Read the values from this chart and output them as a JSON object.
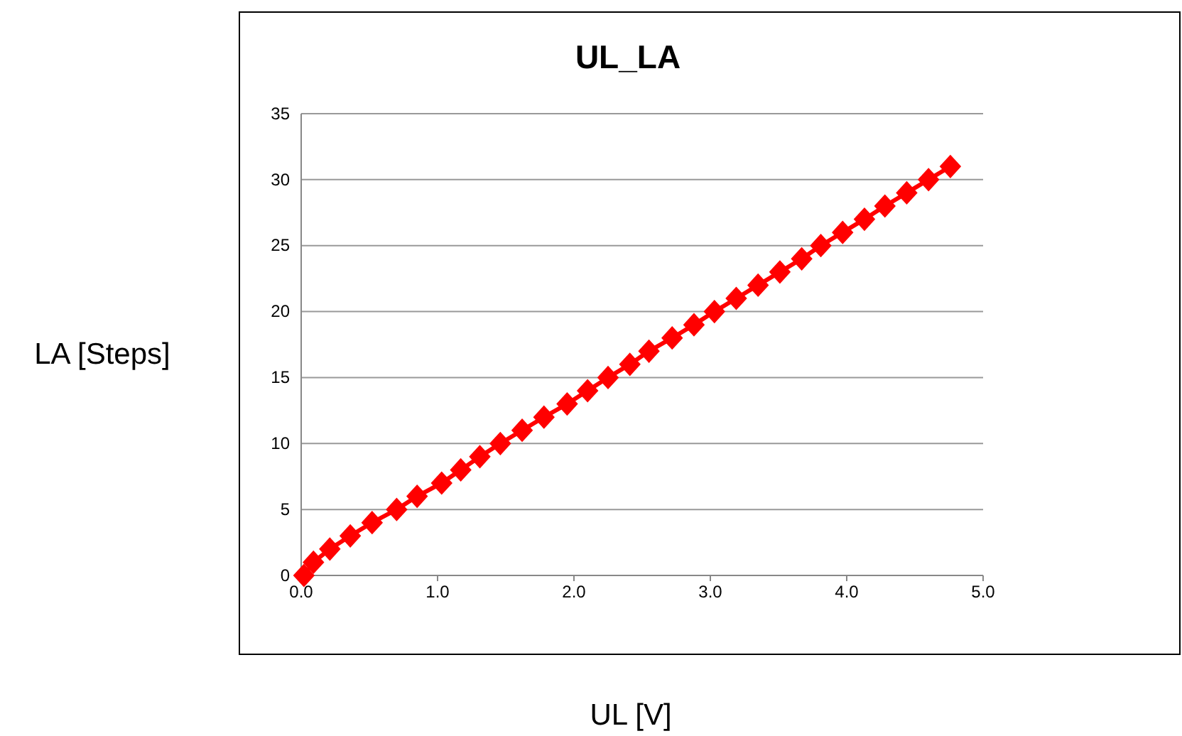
{
  "chart_data": {
    "type": "line",
    "title": "UL_LA",
    "xlabel": "UL [V]",
    "ylabel": "LA [Steps]",
    "x": [
      0.02,
      0.09,
      0.21,
      0.36,
      0.52,
      0.7,
      0.85,
      1.03,
      1.17,
      1.31,
      1.46,
      1.62,
      1.78,
      1.95,
      2.1,
      2.25,
      2.41,
      2.55,
      2.72,
      2.88,
      3.03,
      3.19,
      3.35,
      3.51,
      3.67,
      3.81,
      3.97,
      4.13,
      4.28,
      4.44,
      4.6,
      4.76
    ],
    "series": [
      {
        "color": "#ff0000",
        "values": [
          0,
          1,
          2,
          3,
          4,
          5,
          6,
          7,
          8,
          9,
          10,
          11,
          12,
          13,
          14,
          15,
          16,
          17,
          18,
          19,
          20,
          21,
          22,
          23,
          24,
          25,
          26,
          27,
          28,
          29,
          30,
          31
        ]
      }
    ],
    "xlim": [
      0,
      5
    ],
    "xticks": [
      {
        "value": 0,
        "label": "0.0"
      },
      {
        "value": 1,
        "label": "1.0"
      },
      {
        "value": 2,
        "label": "2.0"
      },
      {
        "value": 3,
        "label": "3.0"
      },
      {
        "value": 4,
        "label": "4.0"
      },
      {
        "value": 5,
        "label": "5.0"
      }
    ],
    "ylim": [
      0,
      35
    ],
    "yticks": [
      0,
      5,
      10,
      15,
      20,
      25,
      30,
      35
    ],
    "grid": "y",
    "marker": "diamond",
    "line_style": "solid"
  }
}
